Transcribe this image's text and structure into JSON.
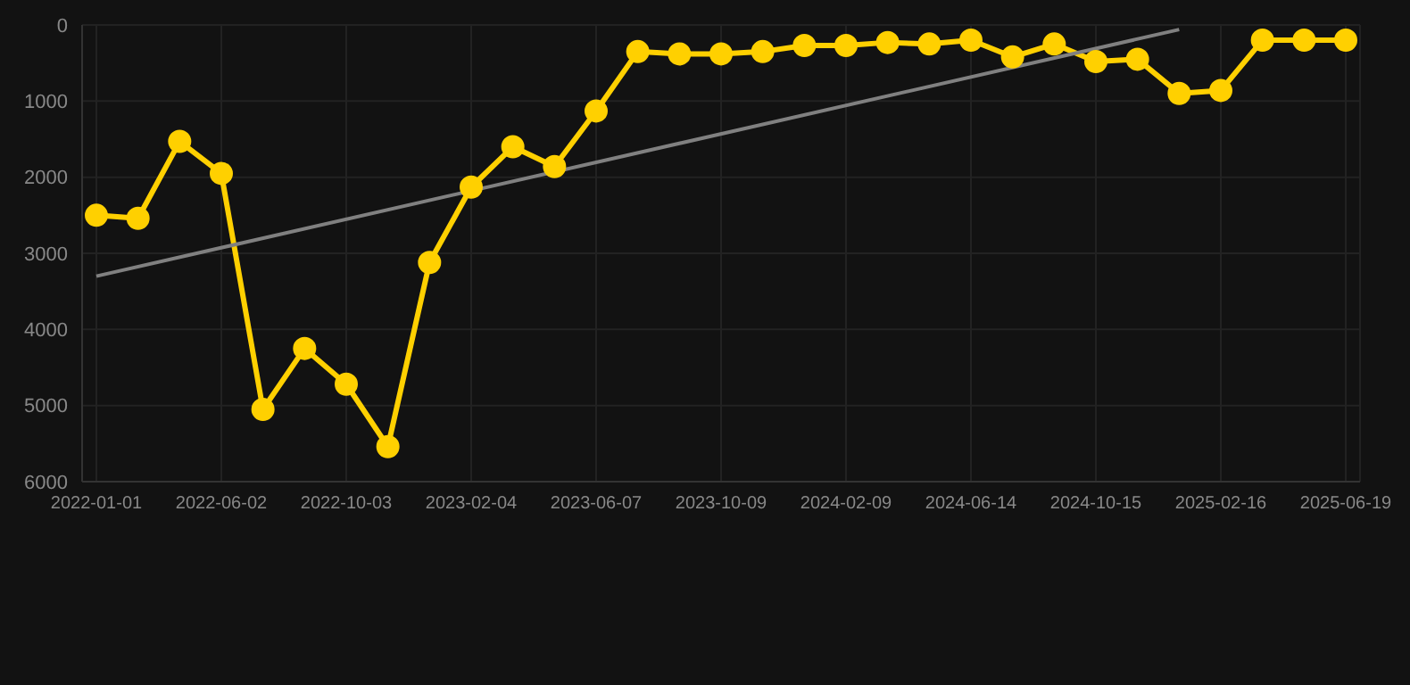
{
  "chart_data": {
    "type": "line",
    "categories": [
      "2022-01-01",
      null,
      null,
      "2022-06-02",
      null,
      null,
      "2022-10-03",
      null,
      null,
      "2023-02-04",
      null,
      null,
      "2023-06-07",
      null,
      null,
      "2023-10-09",
      null,
      null,
      "2024-02-09",
      null,
      null,
      "2024-06-14",
      null,
      null,
      "2024-10-15",
      null,
      null,
      "2025-02-16",
      null,
      null,
      "2025-06-19"
    ],
    "series": [
      {
        "color": "#ffd000",
        "values": [
          2500,
          2540,
          1530,
          1950,
          5050,
          4250,
          4720,
          5540,
          3120,
          2130,
          1600,
          1860,
          1130,
          350,
          380,
          380,
          350,
          270,
          270,
          230,
          250,
          200,
          420,
          250,
          480,
          450,
          900,
          860,
          200,
          200,
          200
        ],
        "marker": "circle"
      },
      {
        "type": "line",
        "color": "#808080",
        "marker": "none",
        "values": [
          3300,
          null,
          null,
          null,
          null,
          null,
          null,
          null,
          null,
          null,
          null,
          null,
          null,
          null,
          null,
          null,
          null,
          null,
          null,
          null,
          null,
          null,
          null,
          null,
          null,
          null,
          60,
          null,
          null,
          null,
          null
        ]
      }
    ],
    "ylim": [
      6000,
      0
    ],
    "yticks": [
      0,
      1000,
      2000,
      3000,
      4000,
      5000,
      6000
    ],
    "grid": true
  }
}
